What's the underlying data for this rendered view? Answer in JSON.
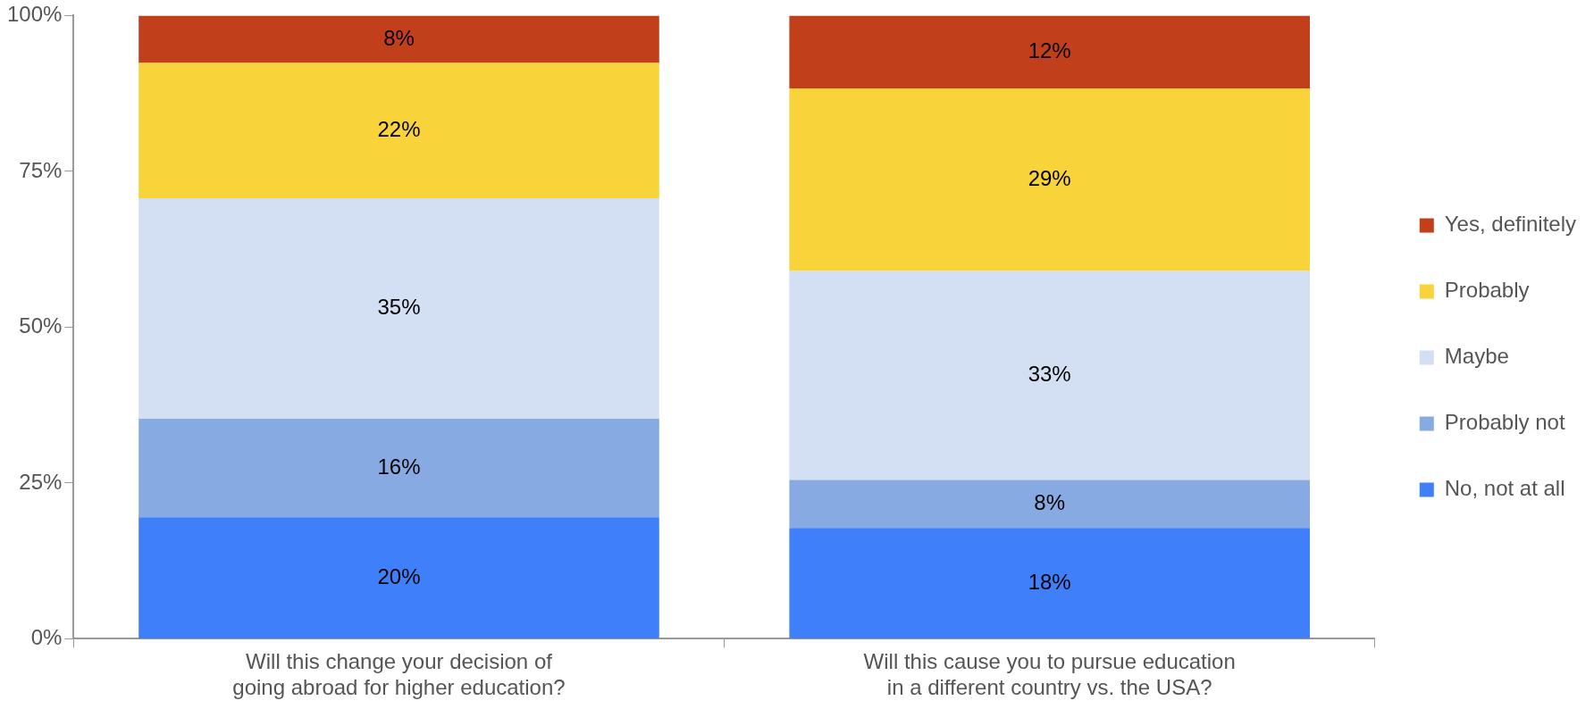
{
  "chart_data": {
    "type": "bar",
    "stacked": true,
    "categories": [
      "Will this change your decision of going abroad for higher education?",
      "Will this cause you to pursue education in a different country vs. the USA?"
    ],
    "series": [
      {
        "name": "No, not at all",
        "color": "#3f7ff9",
        "values": [
          19.5,
          17.8
        ],
        "value_labels": [
          "20%",
          "18%"
        ]
      },
      {
        "name": "Probably not",
        "color": "#87aae3",
        "values": [
          15.8,
          7.7
        ],
        "value_labels": [
          "16%",
          "8%"
        ]
      },
      {
        "name": "Maybe",
        "color": "#d3dff3",
        "values": [
          35.4,
          33.5
        ],
        "value_labels": [
          "35%",
          "33%"
        ]
      },
      {
        "name": "Probably",
        "color": "#f8d33a",
        "values": [
          21.7,
          29.3
        ],
        "value_labels": [
          "22%",
          "29%"
        ]
      },
      {
        "name": "Yes, definitely",
        "color": "#c23f1c",
        "values": [
          7.6,
          11.7
        ],
        "value_labels": [
          "8%",
          "12%"
        ]
      }
    ],
    "ylim": [
      0,
      100
    ],
    "yticks": [
      {
        "value": 0,
        "label": "0%"
      },
      {
        "value": 25,
        "label": "25%"
      },
      {
        "value": 50,
        "label": "50%"
      },
      {
        "value": 75,
        "label": "75%"
      },
      {
        "value": 100,
        "label": "100%"
      }
    ],
    "grid": false,
    "legend": "right"
  }
}
